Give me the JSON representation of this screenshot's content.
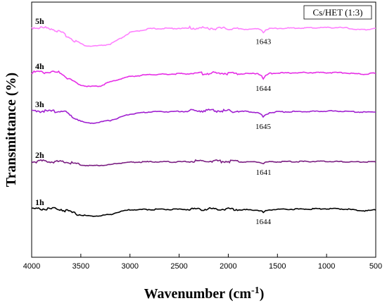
{
  "chart_data": {
    "type": "line",
    "xlabel": "Wavenumber (cm",
    "xlabel_superscript": "-1",
    "xlabel_suffix": ")",
    "ylabel": "Transmittance (%)",
    "legend_box": "Cs/HET (1:3)",
    "x_ticks": [
      4000,
      3500,
      3000,
      2500,
      2000,
      1500,
      1000,
      500
    ],
    "xlim": [
      4000,
      500
    ],
    "series": [
      {
        "name": "5h",
        "color": "#ff80ff",
        "peak_label": "1643",
        "x": [
          4000,
          3800,
          3650,
          3550,
          3450,
          3400,
          3300,
          3200,
          3100,
          3000,
          2800,
          2500,
          2200,
          2000,
          1800,
          1700,
          1660,
          1643,
          1620,
          1580,
          1500,
          1200,
          1000,
          900,
          800,
          700,
          600,
          500
        ],
        "y": [
          0.9,
          0.89,
          0.8,
          0.72,
          0.67,
          0.665,
          0.67,
          0.69,
          0.76,
          0.84,
          0.89,
          0.895,
          0.89,
          0.885,
          0.885,
          0.885,
          0.875,
          0.84,
          0.875,
          0.89,
          0.895,
          0.9,
          0.905,
          0.905,
          0.9,
          0.88,
          0.875,
          0.9
        ]
      },
      {
        "name": "4h",
        "color": "#e62ee6",
        "peak_label": "1644",
        "x": [
          4000,
          3800,
          3700,
          3650,
          3550,
          3450,
          3400,
          3300,
          3200,
          3100,
          3000,
          2800,
          2500,
          2200,
          2000,
          1800,
          1700,
          1660,
          1644,
          1620,
          1580,
          1500,
          1200,
          1000,
          900,
          800,
          700,
          600,
          500
        ],
        "y": [
          0.635,
          0.64,
          0.63,
          0.58,
          0.5,
          0.465,
          0.46,
          0.47,
          0.52,
          0.56,
          0.59,
          0.615,
          0.625,
          0.625,
          0.625,
          0.625,
          0.63,
          0.6,
          0.555,
          0.6,
          0.63,
          0.635,
          0.64,
          0.64,
          0.64,
          0.635,
          0.625,
          0.62,
          0.635
        ]
      },
      {
        "name": "3h",
        "color": "#a020d0",
        "peak_label": "1645",
        "x": [
          4000,
          3900,
          3800,
          3700,
          3650,
          3600,
          3550,
          3500,
          3450,
          3400,
          3350,
          3300,
          3200,
          3100,
          3000,
          2800,
          2500,
          2200,
          2000,
          1800,
          1700,
          1660,
          1645,
          1620,
          1580,
          1500,
          1200,
          1000,
          900,
          800,
          700,
          600,
          500
        ],
        "y": [
          0.37,
          0.365,
          0.36,
          0.37,
          0.34,
          0.3,
          0.27,
          0.24,
          0.22,
          0.215,
          0.22,
          0.23,
          0.25,
          0.29,
          0.33,
          0.36,
          0.365,
          0.37,
          0.365,
          0.365,
          0.35,
          0.32,
          0.29,
          0.32,
          0.35,
          0.36,
          0.365,
          0.37,
          0.37,
          0.365,
          0.36,
          0.355,
          0.36
        ]
      },
      {
        "name": "2h",
        "color": "#7b1f82",
        "peak_label": "1641",
        "x": [
          4000,
          3800,
          3650,
          3500,
          3400,
          3300,
          3200,
          3100,
          3000,
          2800,
          2500,
          2200,
          2000,
          1800,
          1700,
          1660,
          1641,
          1620,
          1580,
          1500,
          1200,
          1000,
          800,
          600,
          500
        ],
        "y": [
          0.055,
          0.055,
          0.045,
          0.015,
          0.005,
          0.01,
          0.02,
          0.04,
          0.05,
          0.055,
          0.055,
          0.06,
          0.055,
          0.055,
          0.055,
          0.045,
          0.035,
          0.045,
          0.055,
          0.055,
          0.06,
          0.06,
          0.055,
          0.055,
          0.055
        ]
      },
      {
        "name": "1h",
        "color": "#000000",
        "peak_label": "1644",
        "x": [
          4000,
          3800,
          3700,
          3650,
          3550,
          3450,
          3400,
          3300,
          3200,
          3100,
          3000,
          2800,
          2500,
          2200,
          2000,
          1800,
          1700,
          1660,
          1644,
          1620,
          1580,
          1500,
          1200,
          1000,
          900,
          800,
          700,
          600,
          500
        ],
        "y": [
          -0.22,
          -0.225,
          -0.23,
          -0.25,
          -0.29,
          -0.305,
          -0.31,
          -0.305,
          -0.29,
          -0.25,
          -0.23,
          -0.225,
          -0.225,
          -0.225,
          -0.225,
          -0.23,
          -0.235,
          -0.245,
          -0.265,
          -0.245,
          -0.23,
          -0.225,
          -0.22,
          -0.215,
          -0.215,
          -0.22,
          -0.235,
          -0.245,
          -0.23
        ]
      }
    ]
  }
}
